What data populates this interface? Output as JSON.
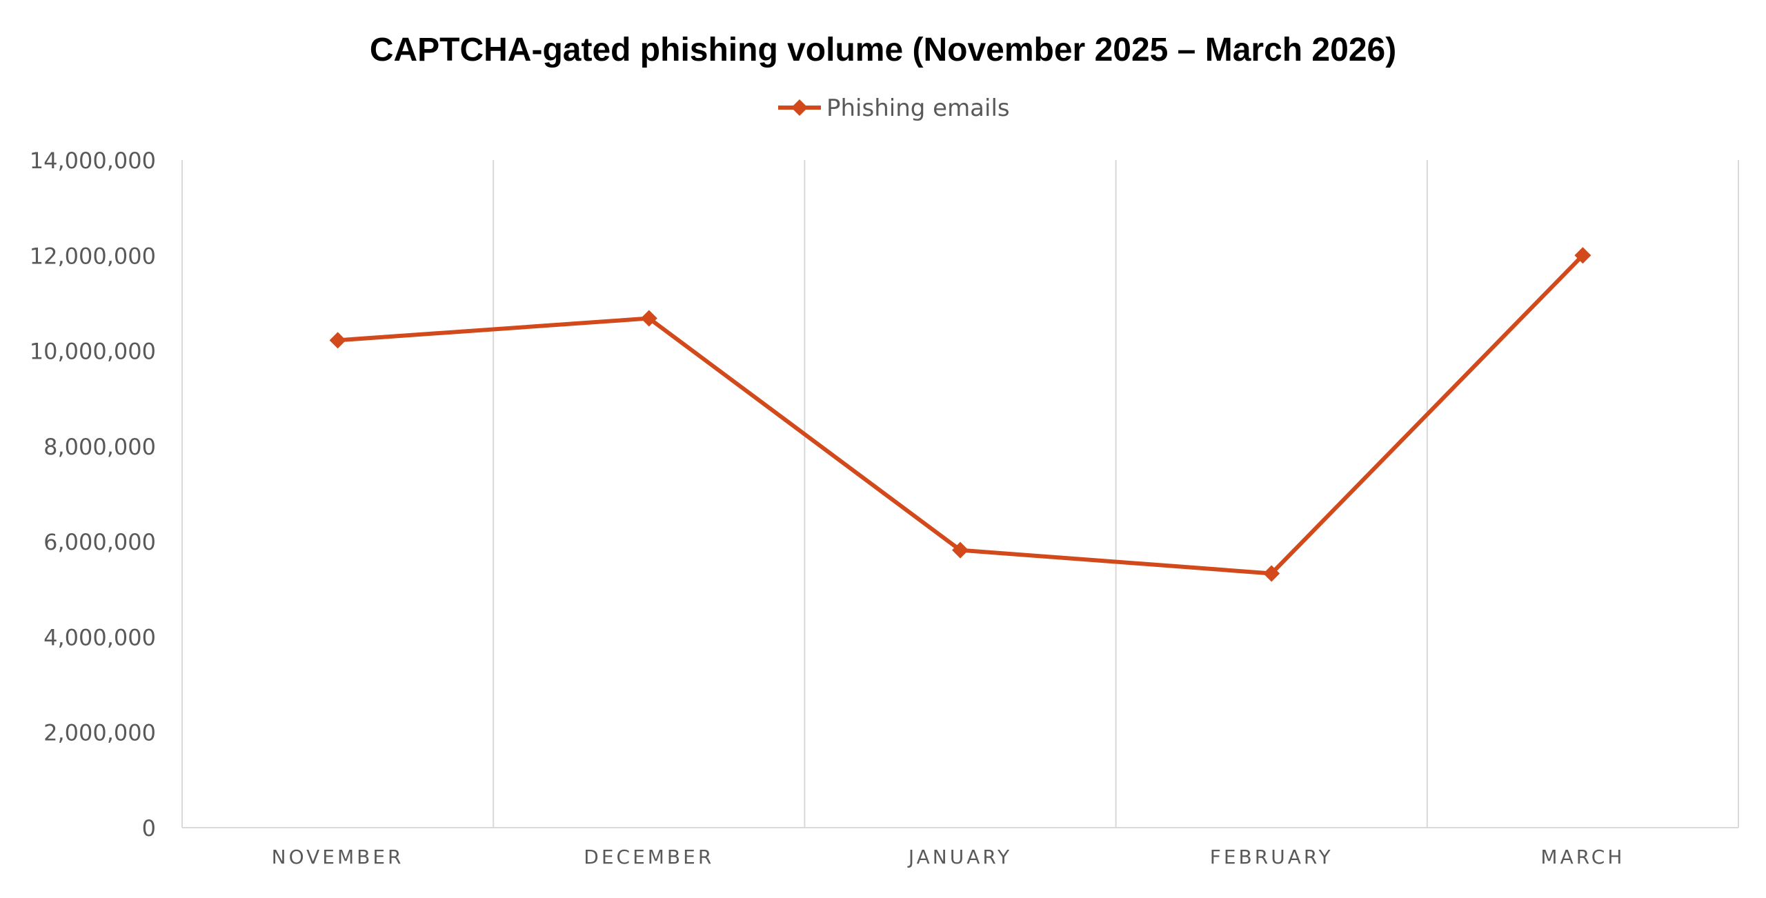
{
  "chart_data": {
    "type": "line",
    "title": "CAPTCHA-gated phishing volume (November 2025 – March 2026)",
    "categories": [
      "NOVEMBER",
      "DECEMBER",
      "JANUARY",
      "FEBRUARY",
      "MARCH"
    ],
    "series": [
      {
        "name": "Phishing emails",
        "color": "#d24a1c",
        "marker": "diamond",
        "values": [
          10220000,
          10680000,
          5820000,
          5330000,
          12000000
        ]
      }
    ],
    "ylim": [
      0,
      14000000
    ],
    "yticks": [
      0,
      2000000,
      4000000,
      6000000,
      8000000,
      10000000,
      12000000,
      14000000
    ],
    "ytick_labels": [
      "0",
      "2,000,000",
      "4,000,000",
      "6,000,000",
      "8,000,000",
      "10,000,000",
      "12,000,000",
      "14,000,000"
    ],
    "xlabel": "",
    "ylabel": "",
    "grid": "vertical",
    "legend_position": "top-center"
  }
}
